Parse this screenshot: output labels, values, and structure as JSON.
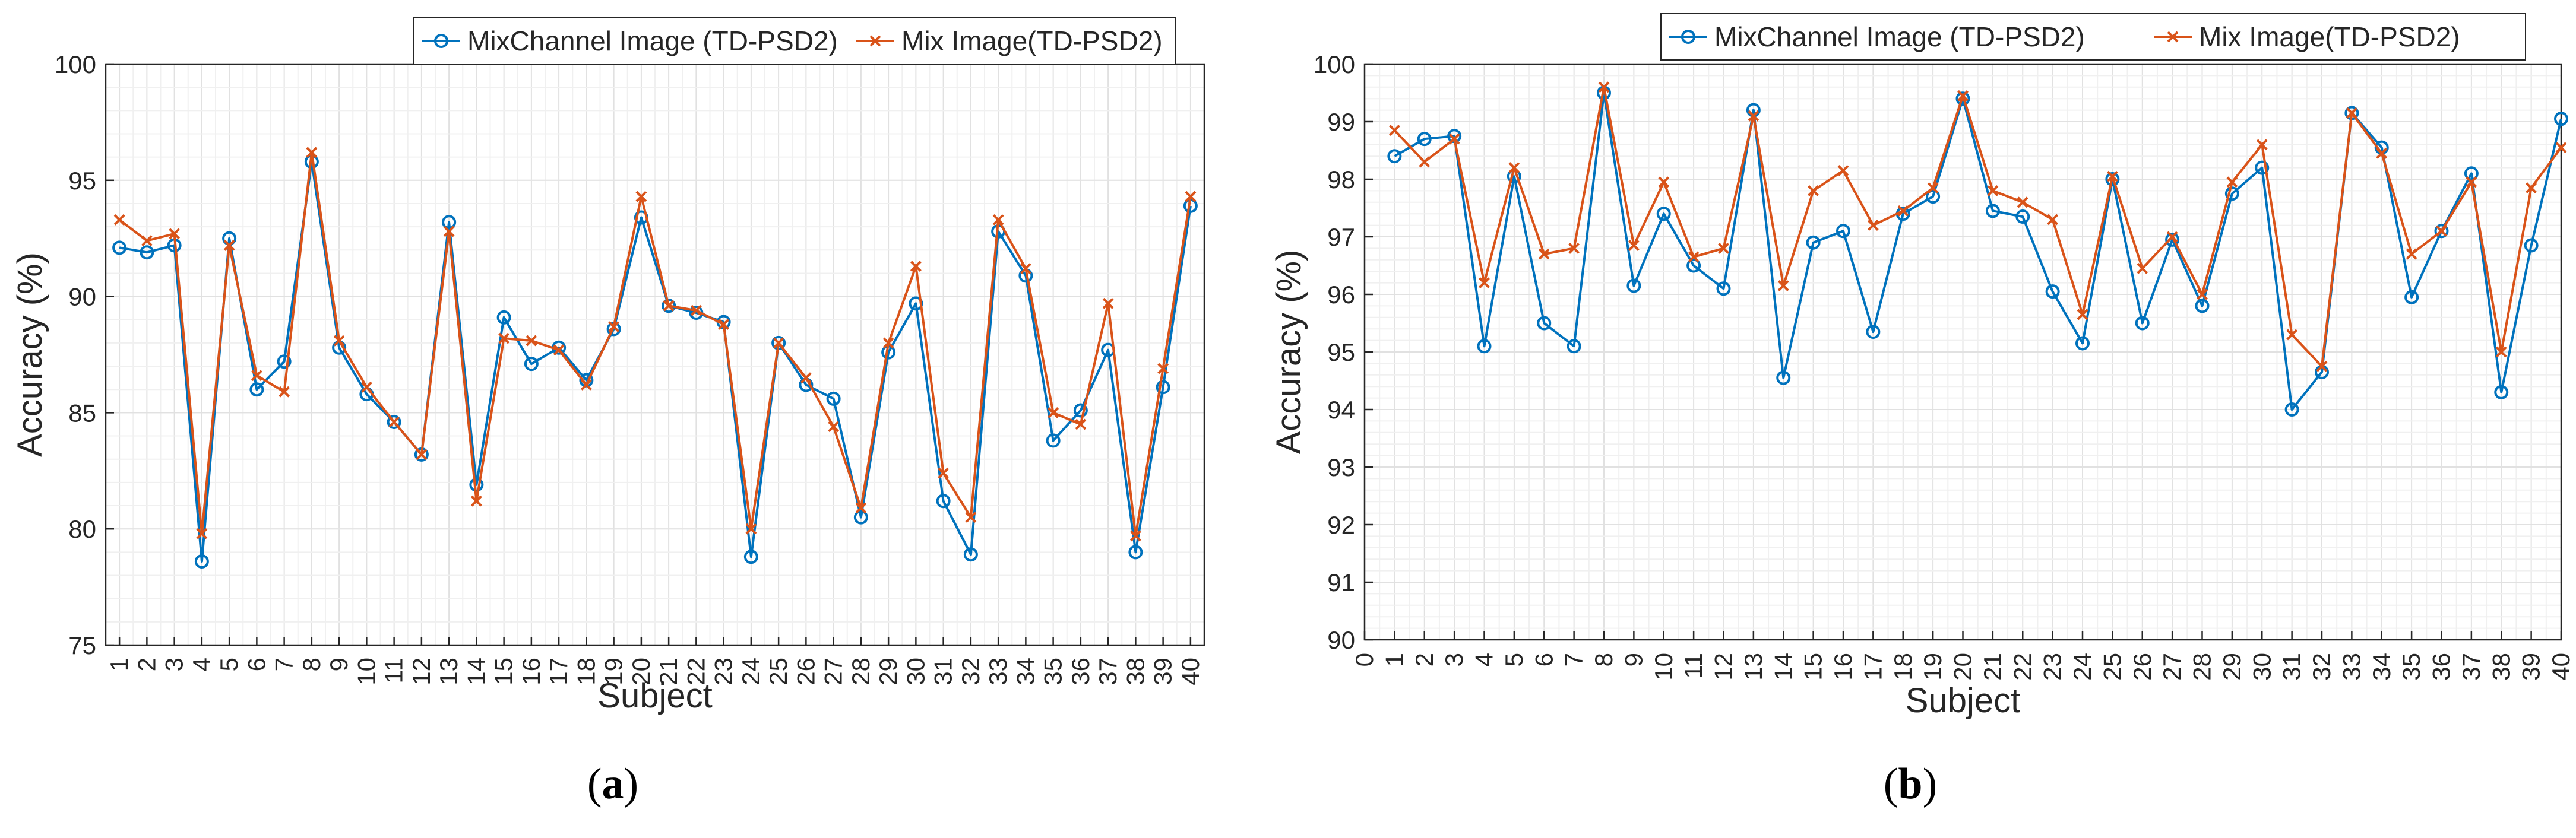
{
  "colors": {
    "mixchannel": "#0072BD",
    "mix": "#D95319",
    "grid": "#e6e6e6",
    "axis": "#262626"
  },
  "chart_data": [
    {
      "type": "line",
      "panel_label_prefix": "(",
      "panel_label_letter": "a",
      "panel_label_suffix": ")",
      "xlabel": "Subject",
      "ylabel": "Accuracy (%)",
      "xlim": [
        0.5,
        40.5
      ],
      "ylim": [
        75,
        100
      ],
      "y_ticks": [
        75,
        80,
        85,
        90,
        95,
        100
      ],
      "x_ticks": [
        "1",
        "2",
        "3",
        "4",
        "5",
        "6",
        "7",
        "8",
        "9",
        "10",
        "11",
        "12",
        "13",
        "14",
        "15",
        "16",
        "17",
        "18",
        "19",
        "20",
        "21",
        "22",
        "23",
        "24",
        "25",
        "26",
        "27",
        "28",
        "29",
        "30",
        "31",
        "32",
        "33",
        "34",
        "35",
        "36",
        "37",
        "38",
        "39",
        "40"
      ],
      "legend": [
        "MixChannel Image (TD-PSD2)",
        "Mix Image(TD-PSD2)"
      ],
      "series": [
        {
          "name": "MixChannel Image (TD-PSD2)",
          "marker": "circle",
          "x": [
            1,
            2,
            3,
            4,
            5,
            6,
            7,
            8,
            9,
            10,
            11,
            12,
            13,
            14,
            15,
            16,
            17,
            18,
            19,
            20,
            21,
            22,
            23,
            24,
            25,
            26,
            27,
            28,
            29,
            30,
            31,
            32,
            33,
            34,
            35,
            36,
            37,
            38,
            39,
            40
          ],
          "values": [
            92.1,
            91.9,
            92.2,
            78.6,
            92.5,
            86.0,
            87.2,
            95.8,
            87.8,
            85.8,
            84.6,
            83.2,
            93.2,
            81.9,
            89.1,
            87.1,
            87.8,
            86.4,
            88.6,
            93.4,
            89.6,
            89.3,
            88.9,
            78.8,
            88.0,
            86.2,
            85.6,
            80.5,
            87.6,
            89.7,
            81.2,
            78.9,
            92.8,
            90.9,
            83.8,
            85.1,
            87.7,
            79.0,
            86.1,
            93.9
          ]
        },
        {
          "name": "Mix Image(TD-PSD2)",
          "marker": "x",
          "x": [
            1,
            2,
            3,
            4,
            5,
            6,
            7,
            8,
            9,
            10,
            11,
            12,
            13,
            14,
            15,
            16,
            17,
            18,
            19,
            20,
            21,
            22,
            23,
            24,
            25,
            26,
            27,
            28,
            29,
            30,
            31,
            32,
            33,
            34,
            35,
            36,
            37,
            38,
            39,
            40
          ],
          "values": [
            93.3,
            92.4,
            92.7,
            79.8,
            92.2,
            86.6,
            85.9,
            96.2,
            88.1,
            86.1,
            84.6,
            83.2,
            92.8,
            81.2,
            88.2,
            88.1,
            87.7,
            86.2,
            88.7,
            94.3,
            89.6,
            89.4,
            88.8,
            80.0,
            88.0,
            86.5,
            84.4,
            80.9,
            88.0,
            91.3,
            82.4,
            80.5,
            93.3,
            91.2,
            85.0,
            84.5,
            89.7,
            79.7,
            86.9,
            94.3
          ]
        }
      ]
    },
    {
      "type": "line",
      "panel_label_prefix": "(",
      "panel_label_letter": "b",
      "panel_label_suffix": ")",
      "xlabel": "Subject",
      "ylabel": "Accuracy (%)",
      "xlim": [
        0,
        40
      ],
      "ylim": [
        90,
        100
      ],
      "y_ticks": [
        90,
        91,
        92,
        93,
        94,
        95,
        96,
        97,
        98,
        99,
        100
      ],
      "x_ticks": [
        "0",
        "1",
        "2",
        "3",
        "4",
        "5",
        "6",
        "7",
        "8",
        "9",
        "10",
        "11",
        "12",
        "13",
        "14",
        "15",
        "16",
        "17",
        "18",
        "19",
        "20",
        "21",
        "22",
        "23",
        "24",
        "25",
        "26",
        "27",
        "28",
        "29",
        "30",
        "31",
        "32",
        "33",
        "34",
        "35",
        "36",
        "37",
        "38",
        "39",
        "40"
      ],
      "legend": [
        "MixChannel Image (TD-PSD2)",
        "Mix Image(TD-PSD2)"
      ],
      "series": [
        {
          "name": "MixChannel Image (TD-PSD2)",
          "marker": "circle",
          "x": [
            1,
            2,
            3,
            4,
            5,
            6,
            7,
            8,
            9,
            10,
            11,
            12,
            13,
            14,
            15,
            16,
            17,
            18,
            19,
            20,
            21,
            22,
            23,
            24,
            25,
            26,
            27,
            28,
            29,
            30,
            31,
            32,
            33,
            34,
            35,
            36,
            37,
            38,
            39,
            40
          ],
          "values": [
            98.4,
            98.7,
            98.75,
            95.1,
            98.05,
            95.5,
            95.1,
            99.5,
            96.15,
            97.4,
            96.5,
            96.1,
            99.2,
            94.55,
            96.9,
            97.1,
            95.35,
            97.4,
            97.7,
            99.4,
            97.45,
            97.35,
            96.05,
            95.15,
            98.0,
            95.5,
            96.95,
            95.8,
            97.75,
            98.2,
            94.0,
            94.65,
            99.15,
            98.55,
            95.95,
            97.1,
            98.1,
            94.3,
            96.85,
            99.05
          ]
        },
        {
          "name": "Mix Image(TD-PSD2)",
          "marker": "x",
          "x": [
            1,
            2,
            3,
            4,
            5,
            6,
            7,
            8,
            9,
            10,
            11,
            12,
            13,
            14,
            15,
            16,
            17,
            18,
            19,
            20,
            21,
            22,
            23,
            24,
            25,
            26,
            27,
            28,
            29,
            30,
            31,
            32,
            33,
            34,
            35,
            36,
            37,
            38,
            39,
            40
          ],
          "values": [
            98.85,
            98.3,
            98.7,
            96.2,
            98.2,
            96.7,
            96.8,
            99.6,
            96.85,
            97.95,
            96.65,
            96.8,
            99.1,
            96.15,
            97.8,
            98.15,
            97.2,
            97.45,
            97.85,
            99.45,
            97.8,
            97.6,
            97.3,
            95.65,
            98.05,
            96.45,
            97.0,
            96.0,
            97.95,
            98.6,
            95.3,
            94.75,
            99.15,
            98.45,
            96.7,
            97.1,
            97.95,
            95.0,
            97.85,
            98.55
          ]
        }
      ]
    }
  ]
}
